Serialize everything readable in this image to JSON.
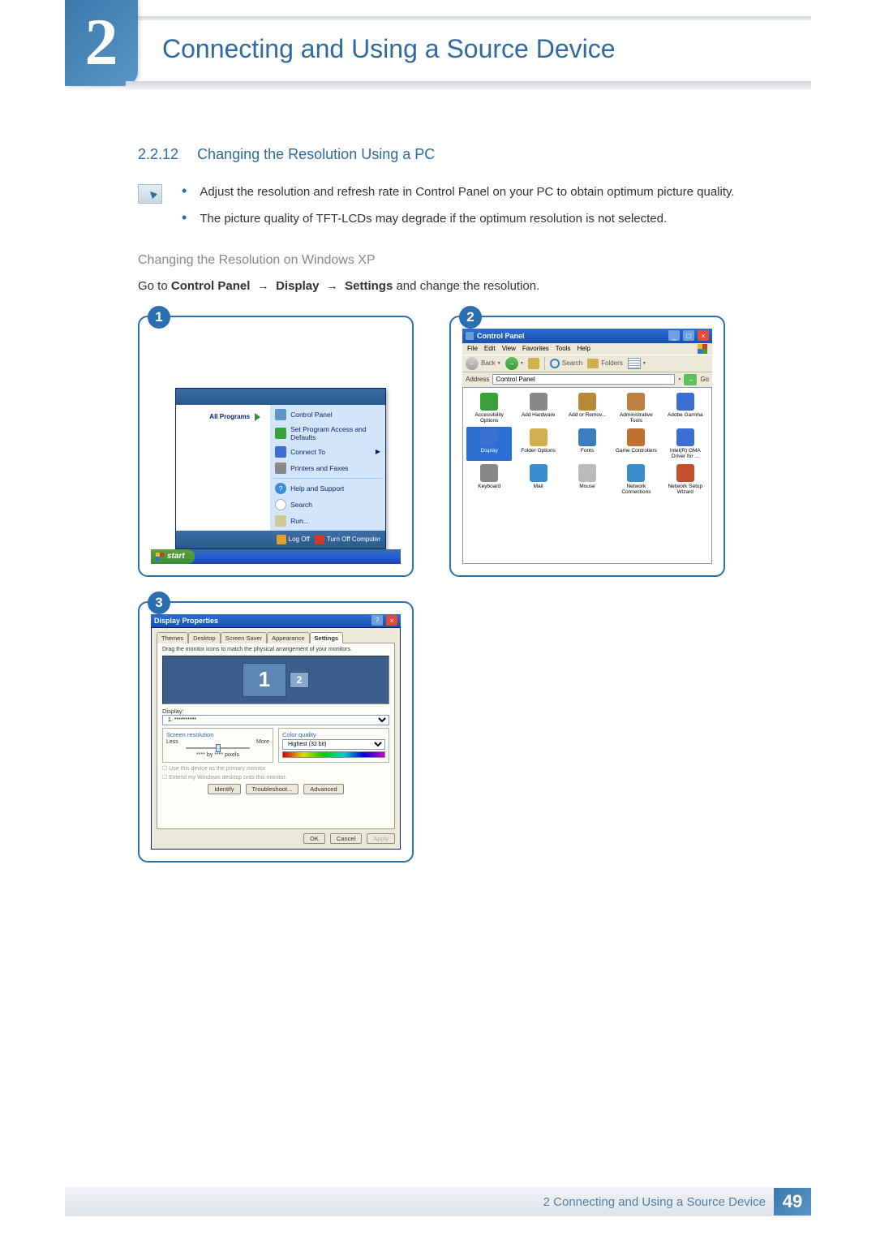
{
  "colors": {
    "brand": "#2f6b9e",
    "frame": "#2b6fb0",
    "xp_blue": "#245edc",
    "xp_green": "#3a8b3a",
    "panel_bg": "#ece9d8"
  },
  "chapter": {
    "number": "2",
    "title": "Connecting and Using a Source Device"
  },
  "section": {
    "number": "2.2.12",
    "title": "Changing the Resolution Using a PC"
  },
  "notes": [
    "Adjust the resolution and refresh rate in Control Panel on your PC to obtain optimum picture quality.",
    "The picture quality of TFT-LCDs may degrade if the optimum resolution is not selected."
  ],
  "subheading": "Changing the Resolution on Windows XP",
  "instruction": {
    "prefix": "Go to ",
    "path": [
      "Control Panel",
      "Display",
      "Settings"
    ],
    "suffix": " and change the resolution."
  },
  "startMenu": {
    "allPrograms": "All Programs",
    "rightItems": [
      {
        "label": "Control Panel",
        "arrow": false
      },
      {
        "label": "Set Program Access and Defaults",
        "arrow": false
      },
      {
        "label": "Connect To",
        "arrow": true
      },
      {
        "label": "Printers and Faxes",
        "arrow": false
      }
    ],
    "rightItems2": [
      {
        "label": "Help and Support"
      },
      {
        "label": "Search"
      },
      {
        "label": "Run..."
      }
    ],
    "logOff": "Log Off",
    "turnOff": "Turn Off Computer",
    "startButton": "start"
  },
  "controlPanel": {
    "title": "Control Panel",
    "menus": [
      "File",
      "Edit",
      "View",
      "Favorites",
      "Tools",
      "Help"
    ],
    "toolbar": {
      "back": "Back",
      "search": "Search",
      "folders": "Folders"
    },
    "addressLabel": "Address",
    "addressValue": "Control Panel",
    "go": "Go",
    "icons": [
      {
        "label": "Accessibility Options",
        "color": "#3aa03a"
      },
      {
        "label": "Add Hardware",
        "color": "#888"
      },
      {
        "label": "Add or Remov...",
        "color": "#b88a3a"
      },
      {
        "label": "Administrative Tools",
        "color": "#c08040"
      },
      {
        "label": "Adobe Gamma",
        "color": "#3a6ed0"
      },
      {
        "label": "Display",
        "color": "#3a6ed0",
        "selected": true
      },
      {
        "label": "Folder Options",
        "color": "#d0b050"
      },
      {
        "label": "Fonts",
        "color": "#3a7ec0"
      },
      {
        "label": "Game Controllers",
        "color": "#c07030"
      },
      {
        "label": "Intel(R) GMA Driver for ...",
        "color": "#3a6ed0"
      },
      {
        "label": "Keyboard",
        "color": "#888"
      },
      {
        "label": "Mail",
        "color": "#3a8ed0"
      },
      {
        "label": "Mouse",
        "color": "#bbb"
      },
      {
        "label": "Network Connections",
        "color": "#3a8ed0"
      },
      {
        "label": "Network Setup Wizard",
        "color": "#c05030"
      }
    ]
  },
  "displayProps": {
    "title": "Display Properties",
    "tabs": [
      "Themes",
      "Desktop",
      "Screen Saver",
      "Appearance",
      "Settings"
    ],
    "activeTab": "Settings",
    "hint": "Drag the monitor icons to match the physical arrangement of your monitors.",
    "monitor1": "1",
    "monitor2": "2",
    "displayLabel": "Display:",
    "displayValue": "1. **********",
    "screenRes": {
      "legend": "Screen resolution",
      "less": "Less",
      "more": "More",
      "value": "**** by **** pixels"
    },
    "colorQuality": {
      "legend": "Color quality",
      "value": "Highest (32 bit)"
    },
    "checks": [
      "Use this device as the primary monitor.",
      "Extend my Windows desktop onto this monitor."
    ],
    "buttons": {
      "identify": "Identify",
      "troubleshoot": "Troubleshoot...",
      "advanced": "Advanced"
    },
    "dialogButtons": {
      "ok": "OK",
      "cancel": "Cancel",
      "apply": "Apply"
    }
  },
  "footer": {
    "text": "2 Connecting and Using a Source Device",
    "page": "49"
  }
}
